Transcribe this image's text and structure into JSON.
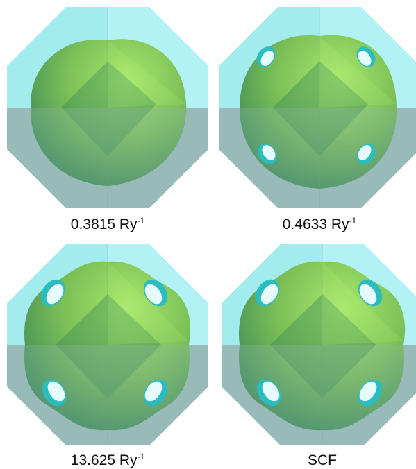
{
  "panels": [
    {
      "label": "0.3815 Ry",
      "exponent": "-1",
      "necks": false
    },
    {
      "label": "0.4633 Ry",
      "exponent": "-1",
      "necks": true,
      "neck_size": "small"
    },
    {
      "label": "13.625 Ry",
      "exponent": "-1",
      "necks": true,
      "neck_size": "large"
    },
    {
      "label": "SCF",
      "exponent": "",
      "necks": true,
      "neck_size": "large"
    }
  ],
  "colors": {
    "zone_light": "#a3ecee",
    "zone_dark": "#9cbcbc",
    "zone_quadrant_bright": "#b8f4f6",
    "surface_light": "#8fd35c",
    "surface_dark": "#2f7e57",
    "neck": "#2bbcc0"
  }
}
